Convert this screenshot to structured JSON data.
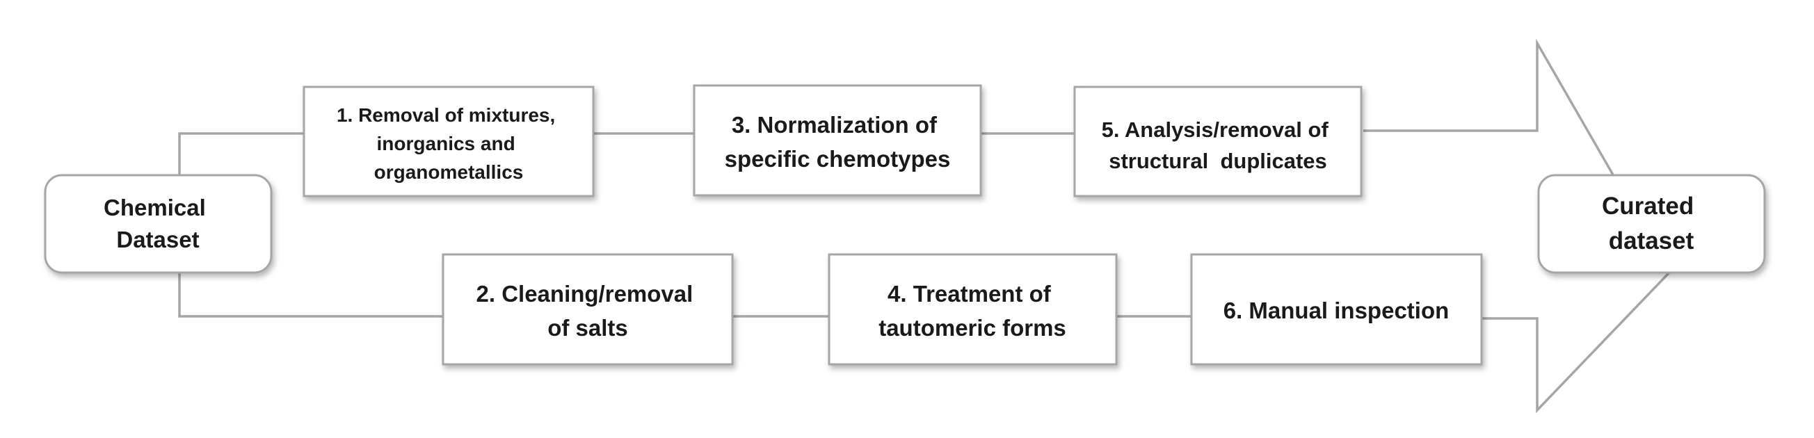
{
  "diagram": {
    "type": "workflow",
    "start_node": {
      "line1": "Chemical",
      "line2": "Dataset"
    },
    "end_node": {
      "line1": "Curated",
      "line2": "dataset"
    },
    "steps": {
      "step1": {
        "line1": "1. Removal of mixtures,",
        "line2": "inorganics and",
        "line3": "organometallics"
      },
      "step2": {
        "line1": "2. Cleaning/removal",
        "line2": "of salts"
      },
      "step3": {
        "line1": "3. Normalization of",
        "line2": "specific chemotypes"
      },
      "step4": {
        "line1": "4. Treatment of",
        "line2": "tautomeric forms"
      },
      "step5": {
        "line1": "5. Analysis/removal of",
        "line2": "structural  duplicates"
      },
      "step6": {
        "line1": "6. Manual inspection"
      }
    },
    "colors": {
      "box_fill": "#ffffff",
      "box_stroke": "#a6a6a6",
      "line": "#a6a6a6",
      "text": "#1a1a1a",
      "shadow": "#000000"
    }
  }
}
